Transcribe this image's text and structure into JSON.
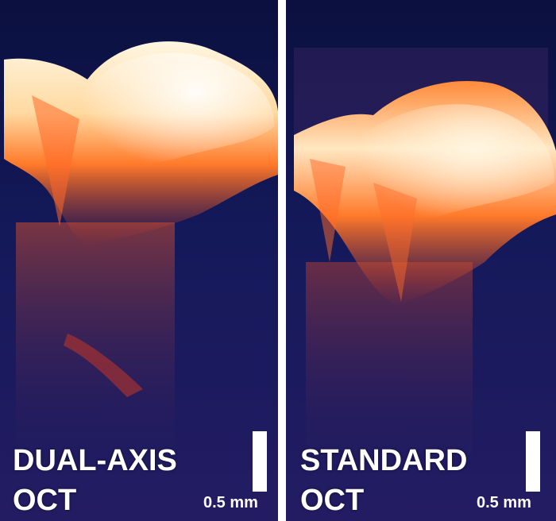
{
  "panels": {
    "left": {
      "line1": "DUAL-AXIS",
      "line2": "OCT",
      "scale": "0.5 mm"
    },
    "right": {
      "line1": "STANDARD",
      "line2": "OCT",
      "scale": "0.5 mm"
    }
  },
  "colors": {
    "background": "#14195a",
    "tissue_bright": "#fff3d6",
    "tissue_mid": "#ff7a2a",
    "tissue_deep": "#b8342a",
    "divider": "#ffffff"
  }
}
